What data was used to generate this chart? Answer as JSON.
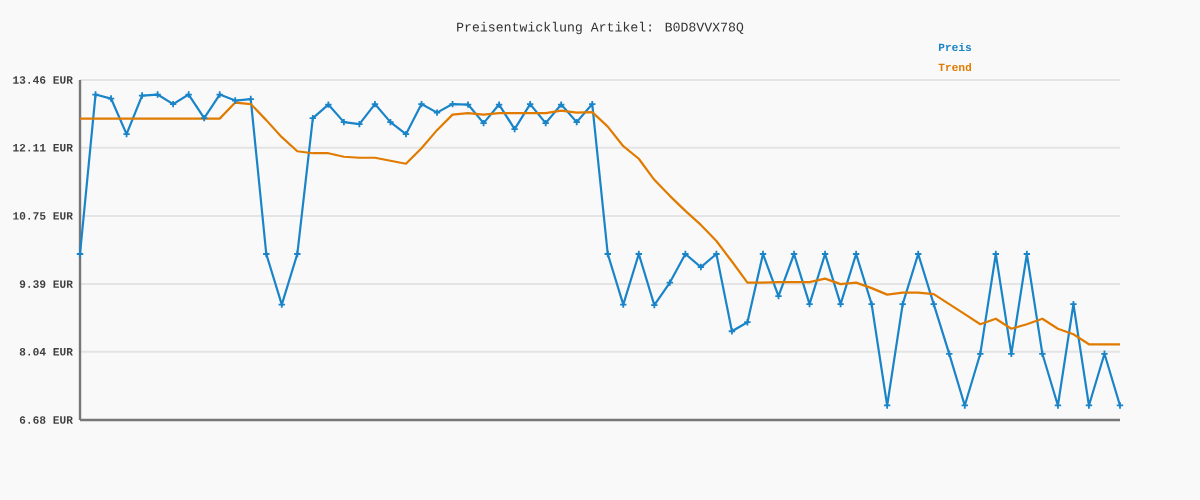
{
  "chart_data": {
    "type": "line",
    "title": "Preisentwicklung Artikel: B0D8VVX78Q",
    "categories": [
      null,
      null,
      null,
      null,
      null,
      null,
      null,
      null,
      null,
      null,
      null,
      null,
      null,
      null,
      null,
      null,
      null,
      null,
      null,
      null,
      null,
      null,
      null,
      null,
      null,
      null,
      null,
      null,
      null,
      null,
      null,
      null,
      null,
      null,
      null,
      null,
      null,
      null,
      null,
      null,
      null,
      null,
      null,
      null,
      null,
      null,
      null,
      null,
      null,
      null,
      null,
      null,
      null,
      null,
      null,
      null,
      null,
      null,
      null,
      null,
      null,
      null,
      null,
      null,
      null,
      null,
      null,
      null
    ],
    "series": [
      {
        "name": "Preis",
        "color": "#1a84c8",
        "marker": "cross",
        "values": [
          9.99,
          13.17,
          13.09,
          12.38,
          13.15,
          13.17,
          12.98,
          13.17,
          12.7,
          13.17,
          13.05,
          13.08,
          9.99,
          8.98,
          9.99,
          12.7,
          12.97,
          12.62,
          12.58,
          12.98,
          12.62,
          12.38,
          12.98,
          12.81,
          12.98,
          12.97,
          12.6,
          12.97,
          12.48,
          12.98,
          12.6,
          12.97,
          12.62,
          12.98,
          9.99,
          8.98,
          9.99,
          8.97,
          9.42,
          9.99,
          9.73,
          9.99,
          8.45,
          8.63,
          9.99,
          9.15,
          9.99,
          8.99,
          9.99,
          8.99,
          9.99,
          8.99,
          6.97,
          8.99,
          9.99,
          8.99,
          8.0,
          6.97,
          8.0,
          9.99,
          8.0,
          9.99,
          8.0,
          6.97,
          8.99,
          6.97,
          8.0,
          6.97
        ]
      },
      {
        "name": "Trend",
        "color": "#e07b00",
        "marker": "none",
        "values": [
          12.69,
          12.69,
          12.69,
          12.69,
          12.69,
          12.69,
          12.69,
          12.69,
          12.69,
          12.69,
          13.01,
          12.98,
          12.66,
          12.32,
          12.04,
          12.0,
          12.0,
          11.93,
          11.91,
          11.91,
          11.85,
          11.79,
          12.1,
          12.46,
          12.77,
          12.8,
          12.77,
          12.8,
          12.8,
          12.8,
          12.8,
          12.85,
          12.81,
          12.82,
          12.53,
          12.14,
          11.89,
          11.47,
          11.15,
          10.85,
          10.57,
          10.25,
          9.84,
          9.42,
          9.42,
          9.43,
          9.43,
          9.43,
          9.5,
          9.39,
          9.42,
          9.31,
          9.18,
          9.22,
          9.22,
          9.19,
          8.99,
          8.79,
          8.59,
          8.7,
          8.5,
          8.59,
          8.7,
          8.5,
          8.39,
          8.19,
          8.19,
          8.19
        ]
      }
    ],
    "ylim": [
      6.68,
      13.46
    ],
    "yticks": [
      {
        "value": 6.68,
        "label": "6.68 EUR"
      },
      {
        "value": 8.04,
        "label": "8.04 EUR"
      },
      {
        "value": 9.39,
        "label": "9.39 EUR"
      },
      {
        "value": 10.75,
        "label": "10.75 EUR"
      },
      {
        "value": 12.11,
        "label": "12.11 EUR"
      },
      {
        "value": 13.46,
        "label": "13.46 EUR"
      }
    ],
    "grid": "y",
    "legend": "top right",
    "line_style": "solid"
  }
}
